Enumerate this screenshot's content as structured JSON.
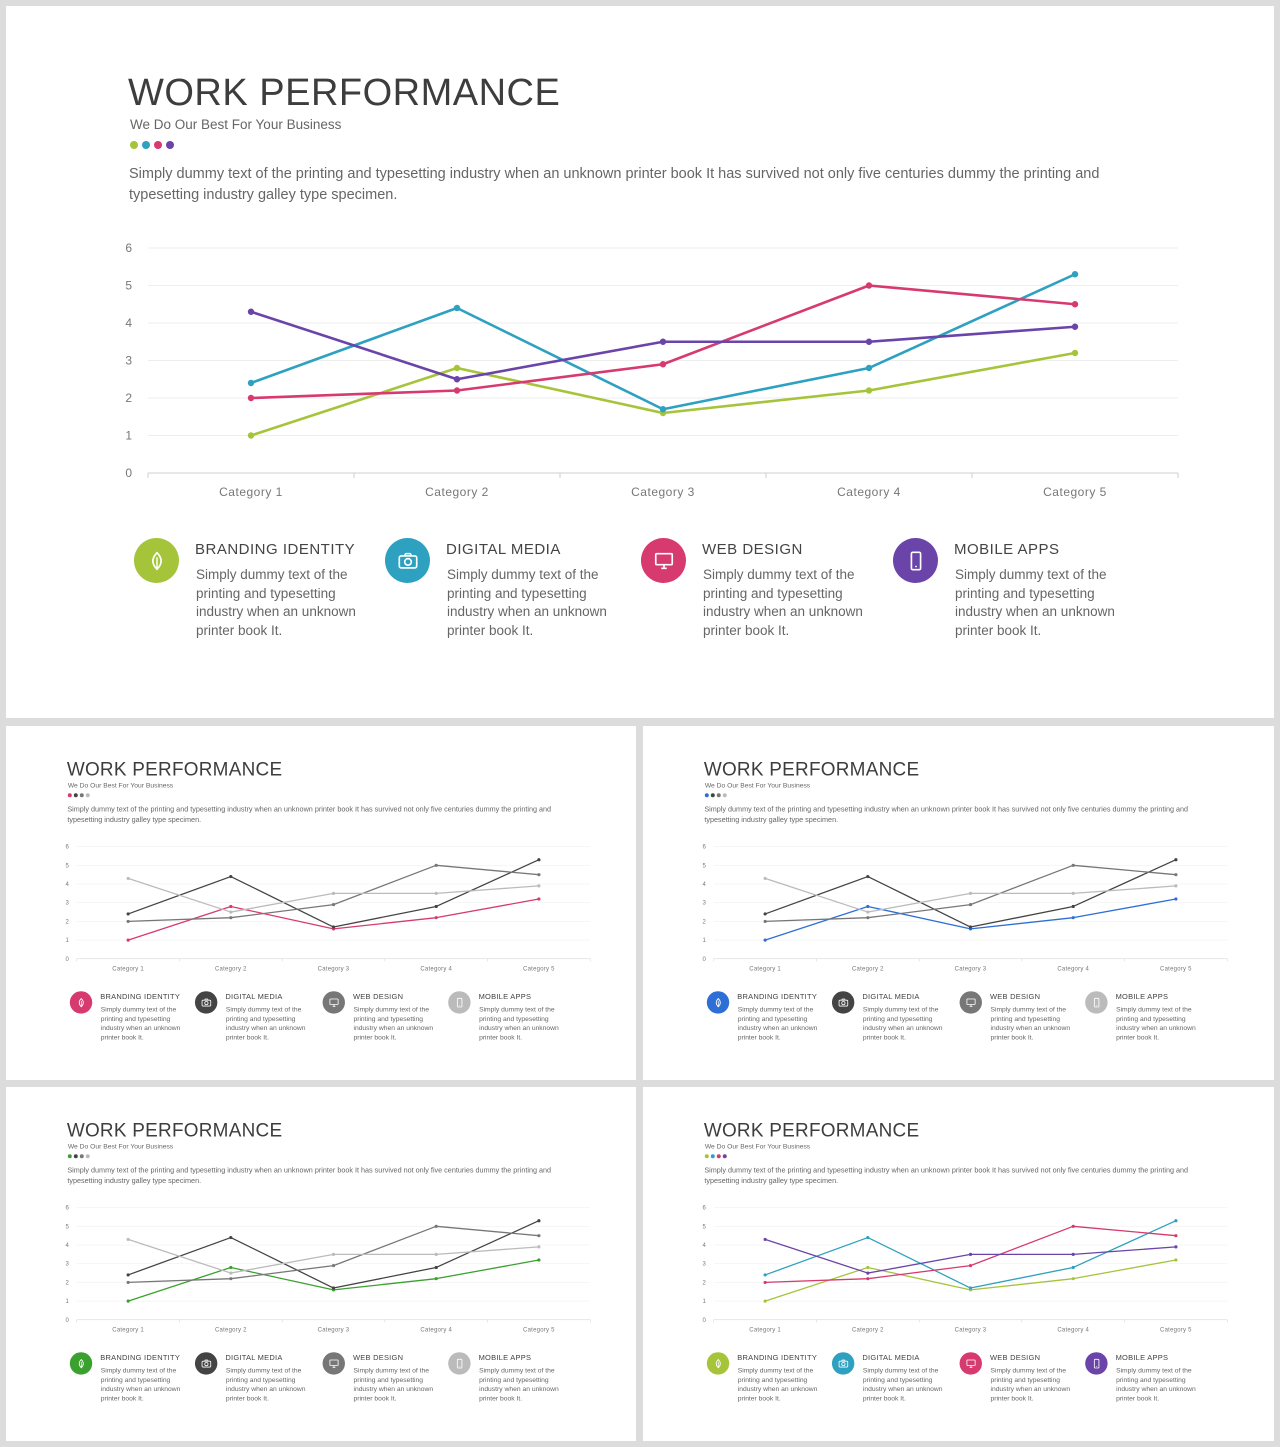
{
  "slide": {
    "title": "WORK PERFORMANCE",
    "subtitle": "We Do Our Best For Your Business",
    "paragraph": "Simply dummy text of the printing and typesetting industry when an unknown printer book It has survived not only five centuries dummy the printing and typesetting industry galley type specimen."
  },
  "features": [
    {
      "heading": "BRANDING IDENTITY",
      "text": "Simply dummy text of the printing and typesetting industry when an unknown printer book It.",
      "icon": "leaf-icon"
    },
    {
      "heading": "DIGITAL MEDIA",
      "text": "Simply dummy text of the printing and typesetting industry when an unknown printer book It.",
      "icon": "camera-icon"
    },
    {
      "heading": "WEB DESIGN",
      "text": "Simply dummy text of the printing and typesetting industry when an unknown printer book It.",
      "icon": "monitor-icon"
    },
    {
      "heading": "MOBILE APPS",
      "text": "Simply dummy text of the printing and typesetting industry when an unknown printer book It.",
      "icon": "mobile-icon"
    }
  ],
  "chart_data": {
    "type": "line",
    "categories": [
      "Category 1",
      "Category 2",
      "Category 3",
      "Category 4",
      "Category 5"
    ],
    "ylim": [
      0,
      6
    ],
    "yticks": [
      "0",
      "1",
      "2",
      "3",
      "4",
      "5",
      "6"
    ],
    "grid": true,
    "series": [
      {
        "values": [
          1.0,
          2.8,
          1.6,
          2.2,
          3.2
        ]
      },
      {
        "values": [
          2.4,
          4.4,
          1.7,
          2.8,
          5.3
        ]
      },
      {
        "values": [
          2.0,
          2.2,
          2.9,
          5.0,
          4.5
        ]
      },
      {
        "values": [
          4.3,
          2.5,
          3.5,
          3.5,
          3.9
        ]
      }
    ]
  },
  "themes": [
    {
      "colors": [
        "#a6c43a",
        "#2ea0c0",
        "#d63a6e",
        "#6a44a8"
      ]
    },
    {
      "colors": [
        "#d63a6e",
        "#444444",
        "#777777",
        "#bbbbbb"
      ]
    },
    {
      "colors": [
        "#2e6fd6",
        "#444444",
        "#777777",
        "#bbbbbb"
      ]
    },
    {
      "colors": [
        "#3aa02e",
        "#444444",
        "#777777",
        "#bbbbbb"
      ]
    },
    {
      "colors": [
        "#a6c43a",
        "#2ea0c0",
        "#d63a6e",
        "#6a44a8"
      ]
    }
  ]
}
